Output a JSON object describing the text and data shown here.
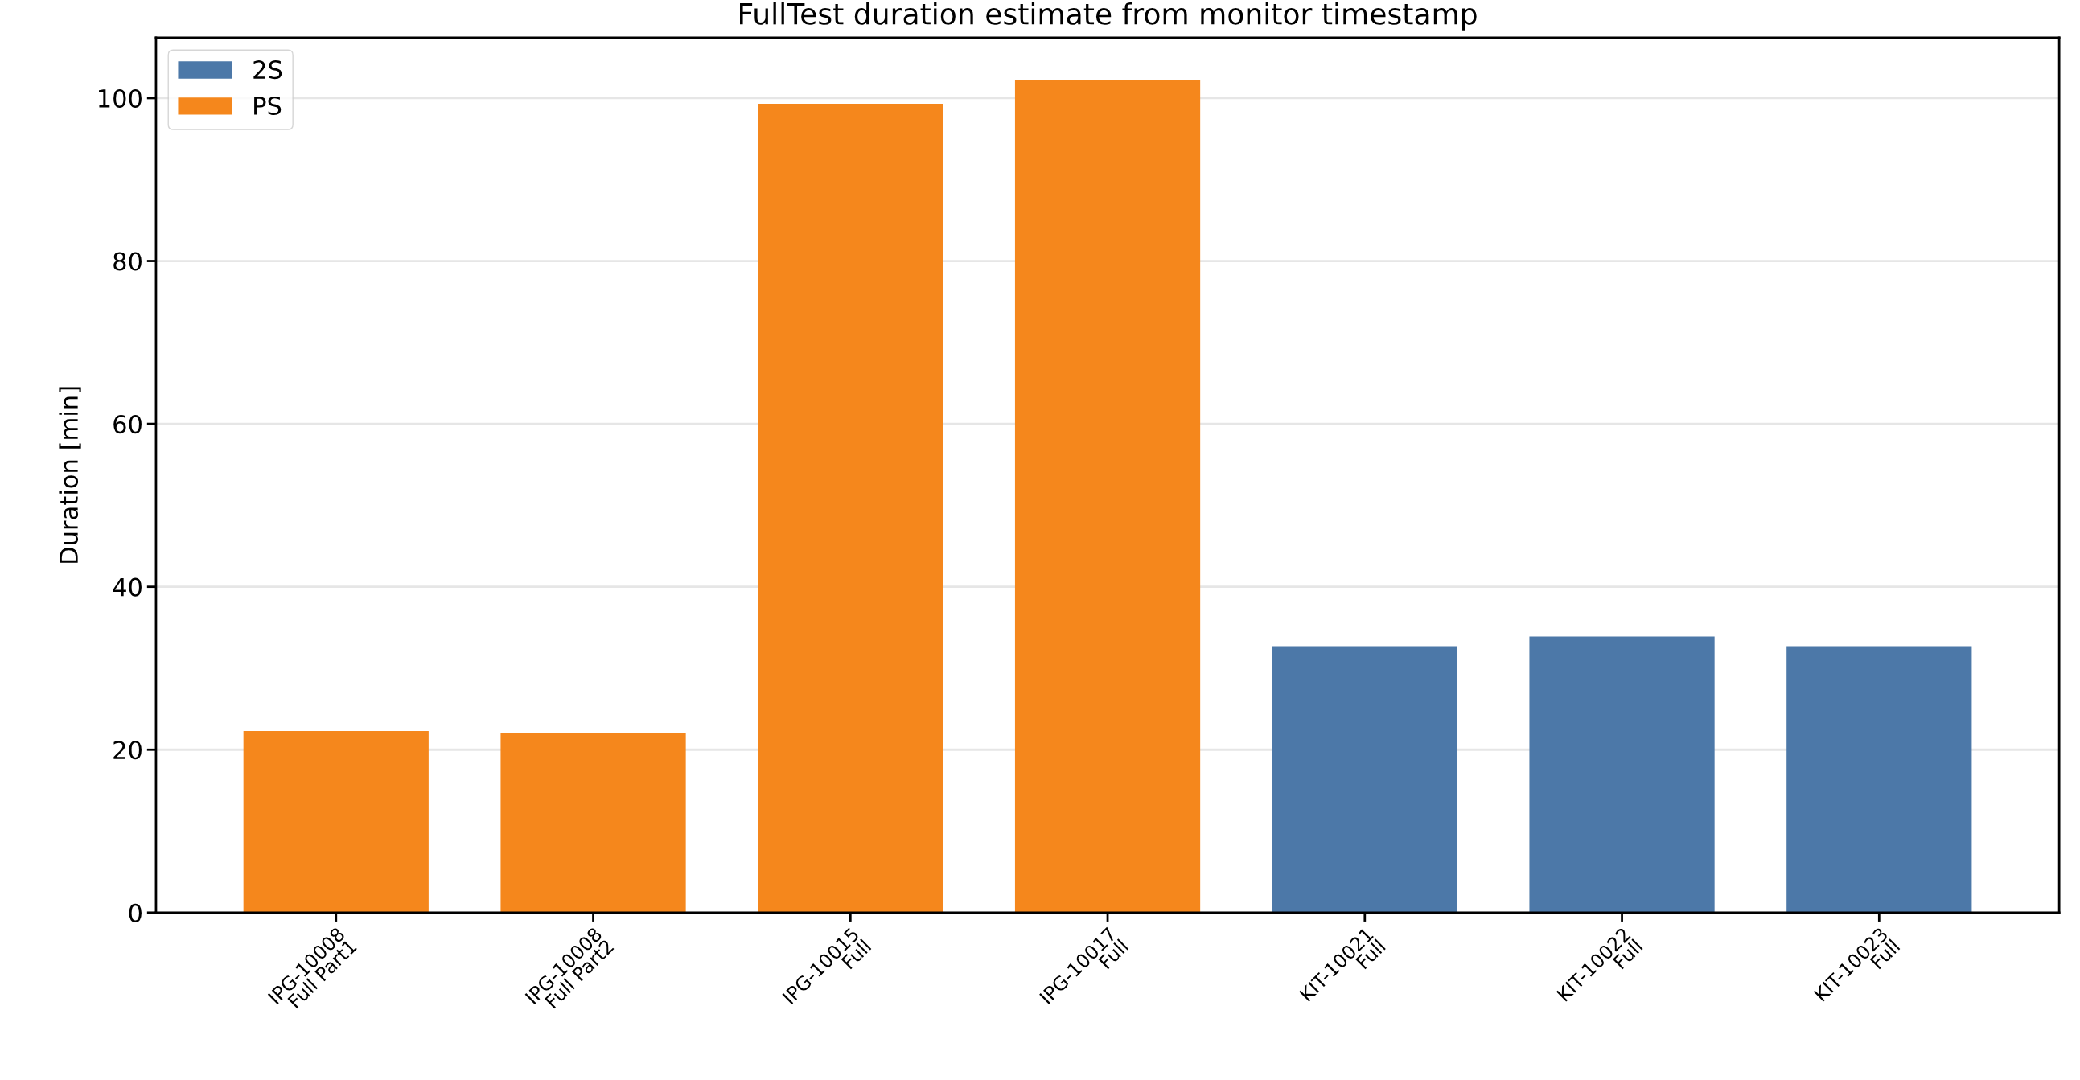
{
  "chart_data": {
    "type": "bar",
    "title": "FullTest duration estimate from monitor timestamp",
    "ylabel": "Duration [min]",
    "categories": [
      "IPG-10008\nFull Part1",
      "IPG-10008\nFull Part2",
      "IPG-10015\nFull",
      "IPG-10017\nFull",
      "KIT-10021\nFull",
      "KIT-10022\nFull",
      "KIT-10023\nFull"
    ],
    "series": [
      {
        "name": "2S",
        "color": "#4c78a8",
        "values": [
          null,
          null,
          null,
          null,
          32.7,
          33.9,
          32.7
        ]
      },
      {
        "name": "PS",
        "color": "#f5871c",
        "values": [
          22.3,
          22.0,
          99.3,
          102.2,
          null,
          null,
          null
        ]
      }
    ],
    "ylim": [
      0,
      107.4
    ],
    "yticks": [
      0,
      20,
      40,
      60,
      80,
      100
    ],
    "grid": "y",
    "legend": "top left"
  }
}
